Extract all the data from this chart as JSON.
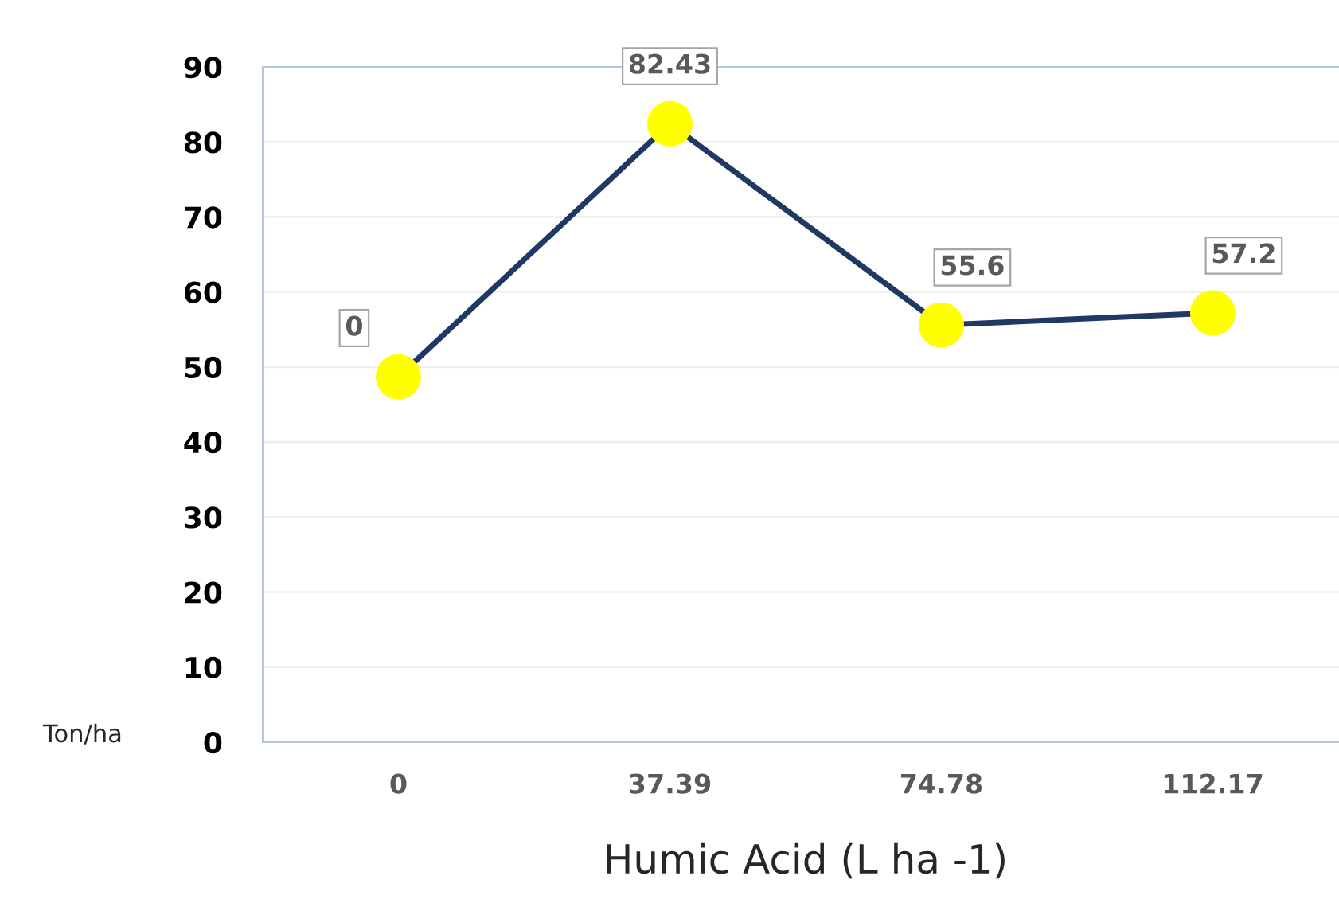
{
  "chart_data": {
    "type": "line",
    "xlabel": "Humic Acid (L ha -1)",
    "ylabel": "Ton/ha",
    "categories": [
      "0",
      "37.39",
      "74.78",
      "112.17"
    ],
    "series": [
      {
        "color": "#1f3864",
        "colors": [
          "#ffff00",
          "#ffff00",
          "#ffff00",
          "#ffff00"
        ],
        "values": [
          48.7,
          82.43,
          55.6,
          57.2
        ]
      }
    ],
    "value_labels": [
      "0",
      "82.43",
      "55.6",
      "57.2"
    ],
    "ylim": [
      0,
      90
    ],
    "yticks": [
      0,
      10,
      20,
      30,
      40,
      50,
      60,
      70,
      80,
      90
    ],
    "grid": "y",
    "marker": "circle",
    "line_style": "solid"
  }
}
